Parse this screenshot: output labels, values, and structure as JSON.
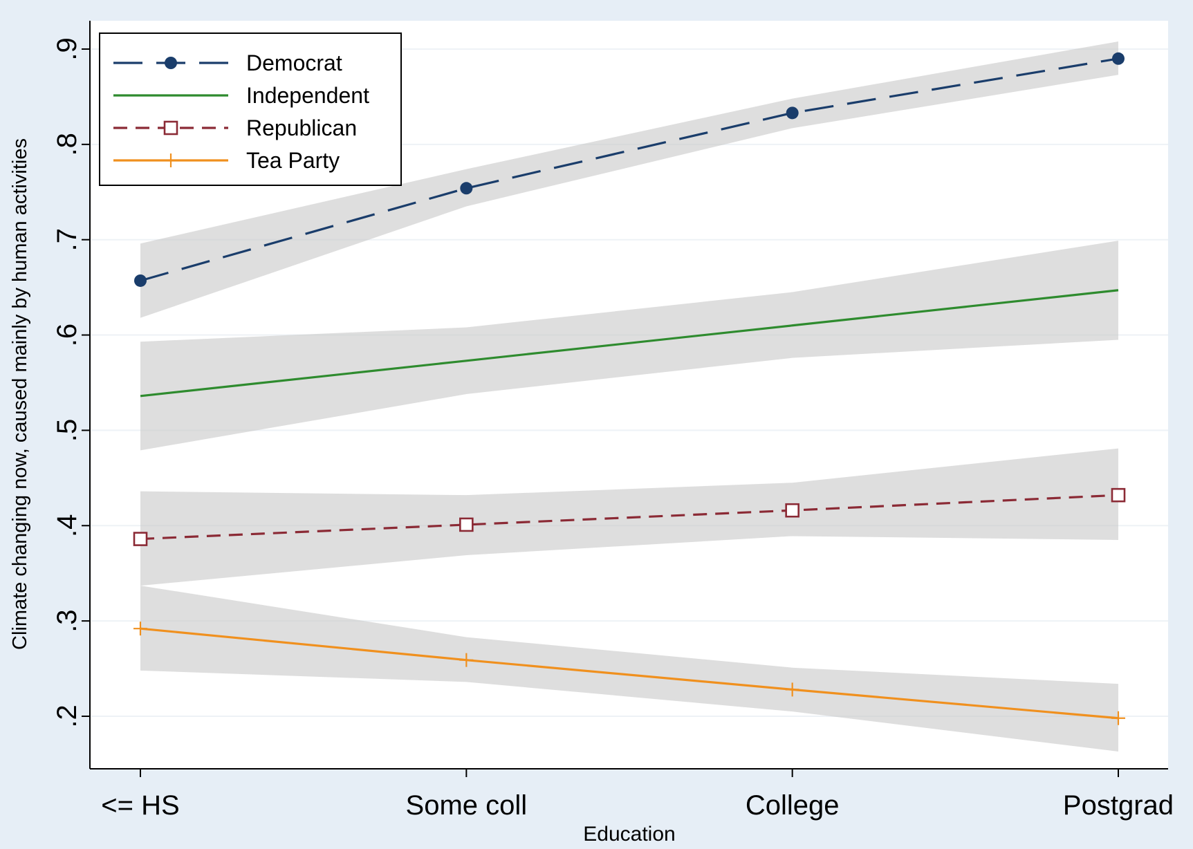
{
  "chart_data": {
    "type": "line",
    "xlabel": "Education",
    "ylabel": "Climate changing now, caused mainly by human activities",
    "categories": [
      "<= HS",
      "Some coll",
      "College",
      "Postgrad"
    ],
    "y_ticks": [
      0.2,
      0.3,
      0.4,
      0.5,
      0.6,
      0.7,
      0.8,
      0.9
    ],
    "y_tick_labels": [
      ".2",
      ".3",
      ".4",
      ".5",
      ".6",
      ".7",
      ".8",
      ".9"
    ],
    "ylim": [
      0.147,
      0.928
    ],
    "grid": true,
    "legend_position": "top-left",
    "confidence_bands": true,
    "series": [
      {
        "name": "Democrat",
        "values": [
          0.657,
          0.754,
          0.833,
          0.89
        ],
        "lower": [
          0.618,
          0.735,
          0.817,
          0.873
        ],
        "upper": [
          0.696,
          0.774,
          0.848,
          0.908
        ],
        "color": "#1a3d6b",
        "dash": "long-dash",
        "marker": "filled-circle"
      },
      {
        "name": "Independent",
        "values": [
          0.536,
          0.573,
          0.61,
          0.647
        ],
        "lower": [
          0.479,
          0.538,
          0.576,
          0.595
        ],
        "upper": [
          0.593,
          0.608,
          0.645,
          0.699
        ],
        "color": "#2e8b2e",
        "dash": "solid",
        "marker": "none"
      },
      {
        "name": "Republican",
        "values": [
          0.386,
          0.401,
          0.416,
          0.432
        ],
        "lower": [
          0.337,
          0.369,
          0.389,
          0.385
        ],
        "upper": [
          0.436,
          0.432,
          0.445,
          0.481
        ],
        "color": "#8b2a35",
        "dash": "short-dash",
        "marker": "hollow-square"
      },
      {
        "name": "Tea Party",
        "values": [
          0.292,
          0.259,
          0.228,
          0.198
        ],
        "lower": [
          0.248,
          0.236,
          0.205,
          0.163
        ],
        "upper": [
          0.337,
          0.283,
          0.251,
          0.234
        ],
        "color": "#f0901e",
        "dash": "solid",
        "marker": "plus"
      }
    ]
  },
  "colors": {
    "page_background": "#e6eef6",
    "plot_background": "#ffffff",
    "band_fill": "#c8c8c8",
    "grid": "#eef2f6",
    "axis": "#000000"
  }
}
